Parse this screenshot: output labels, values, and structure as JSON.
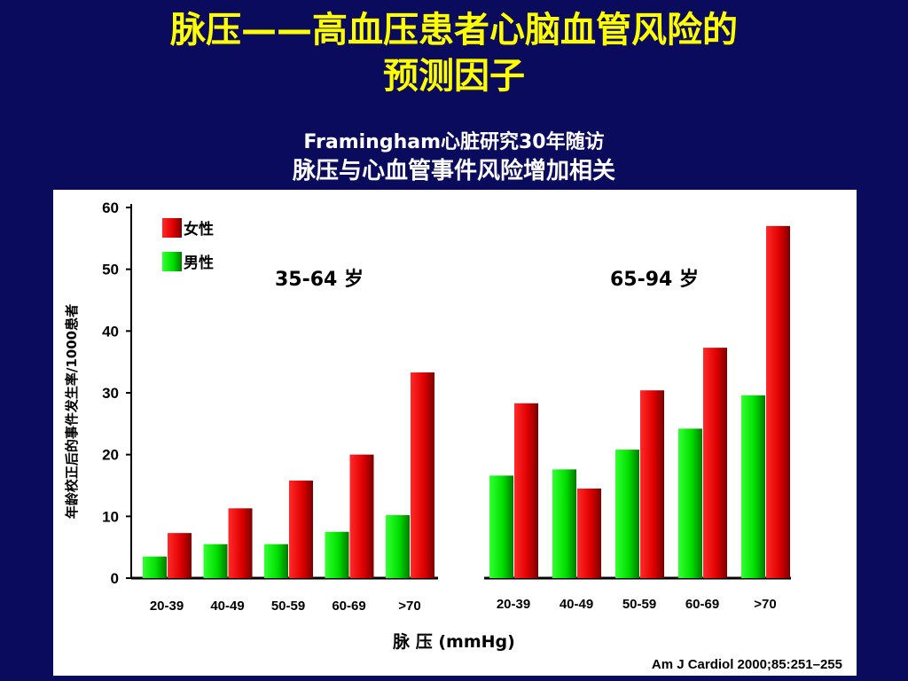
{
  "title_line1": "脉压——高血压患者心脑血管风险的",
  "title_line2": "预测因子",
  "subtitle_line1": "Framingham心脏研究30年随访",
  "subtitle_line2": "脉压与心血管事件风险增加相关",
  "colors": {
    "female": "#e00000",
    "male": "#00e000",
    "title": "#ffff00",
    "background": "#0b0b5e"
  },
  "chart_data": [
    {
      "type": "bar",
      "group_label": "35-64 岁",
      "categories": [
        "20-39",
        "40-49",
        "50-59",
        "60-69",
        ">70"
      ],
      "series": [
        {
          "name": "男性",
          "values": [
            3.5,
            5.5,
            5.5,
            7.5,
            10.2
          ]
        },
        {
          "name": "女性",
          "values": [
            7.3,
            11.3,
            15.8,
            20,
            33.3
          ]
        }
      ],
      "ylim": [
        0,
        60
      ],
      "yticks": [
        0,
        10,
        20,
        30,
        40,
        50,
        60
      ],
      "ylabel": "年龄校正后的事件发生率/1000患者",
      "legend": [
        "女性",
        "男性"
      ]
    },
    {
      "type": "bar",
      "group_label": "65-94 岁",
      "categories": [
        "20-39",
        "40-49",
        "50-59",
        "60-69",
        ">70"
      ],
      "series": [
        {
          "name": "男性",
          "values": [
            16.6,
            17.6,
            20.8,
            24.2,
            29.6
          ]
        },
        {
          "name": "女性",
          "values": [
            28.3,
            14.5,
            30.4,
            37.3,
            57
          ]
        }
      ],
      "ylim": [
        0,
        60
      ]
    }
  ],
  "xlabel": "脉 压 (mmHg)",
  "citation": "Am J Cardiol 2000;85:251–255"
}
